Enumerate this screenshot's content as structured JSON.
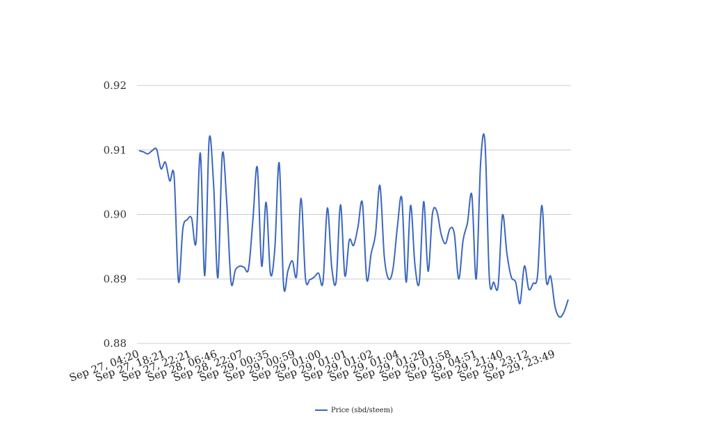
{
  "chart_data": {
    "type": "line",
    "title": "",
    "xlabel": "",
    "ylabel": "",
    "ylim": [
      0.88,
      0.92
    ],
    "yticks": [
      "0.88",
      "0.89",
      "0.90",
      "0.91",
      "0.92"
    ],
    "grid": true,
    "legend_position": "bottom",
    "x_tick_labels": [
      "Sep 27, 04:20",
      "Sep 27, 18:21",
      "Sep 27, 22:21",
      "Sep 28, 06:46",
      "Sep 28, 22:07",
      "Sep 29, 00:35",
      "Sep 29, 00:59",
      "Sep 29, 01:00",
      "Sep 29, 01:01",
      "Sep 29, 01:02",
      "Sep 29, 01:04",
      "Sep 29, 01:29",
      "Sep 29, 01:58",
      "Sep 29, 04:51",
      "Sep 29, 21:40",
      "Sep 29, 23:12",
      "Sep 29, 23:49"
    ],
    "series": [
      {
        "name": "Price (sbd/steem)",
        "color": "#3a66c0",
        "values": [
          0.9099,
          0.9097,
          0.9094,
          0.9099,
          0.9101,
          0.9071,
          0.9081,
          0.9052,
          0.9059,
          0.8896,
          0.8978,
          0.8992,
          0.8994,
          0.8956,
          0.9095,
          0.8905,
          0.9116,
          0.9049,
          0.8902,
          0.9093,
          0.9021,
          0.8895,
          0.8914,
          0.892,
          0.8918,
          0.8916,
          0.8992,
          0.9073,
          0.892,
          0.9019,
          0.8908,
          0.8947,
          0.908,
          0.889,
          0.8913,
          0.8928,
          0.8906,
          0.9025,
          0.8901,
          0.8899,
          0.8903,
          0.8909,
          0.8895,
          0.901,
          0.8918,
          0.8896,
          0.9015,
          0.8905,
          0.896,
          0.8952,
          0.8981,
          0.9018,
          0.8899,
          0.8939,
          0.897,
          0.9045,
          0.8935,
          0.89,
          0.8916,
          0.8981,
          0.9025,
          0.8895,
          0.9014,
          0.8922,
          0.8895,
          0.902,
          0.8912,
          0.9001,
          0.9005,
          0.8969,
          0.8955,
          0.8978,
          0.897,
          0.89,
          0.896,
          0.8987,
          0.903,
          0.89,
          0.908,
          0.9112,
          0.8901,
          0.8895,
          0.8889,
          0.8999,
          0.894,
          0.8903,
          0.8895,
          0.8862,
          0.892,
          0.8884,
          0.8893,
          0.8905,
          0.9014,
          0.8897,
          0.8904,
          0.8857,
          0.8841,
          0.8848,
          0.8868
        ]
      }
    ]
  }
}
